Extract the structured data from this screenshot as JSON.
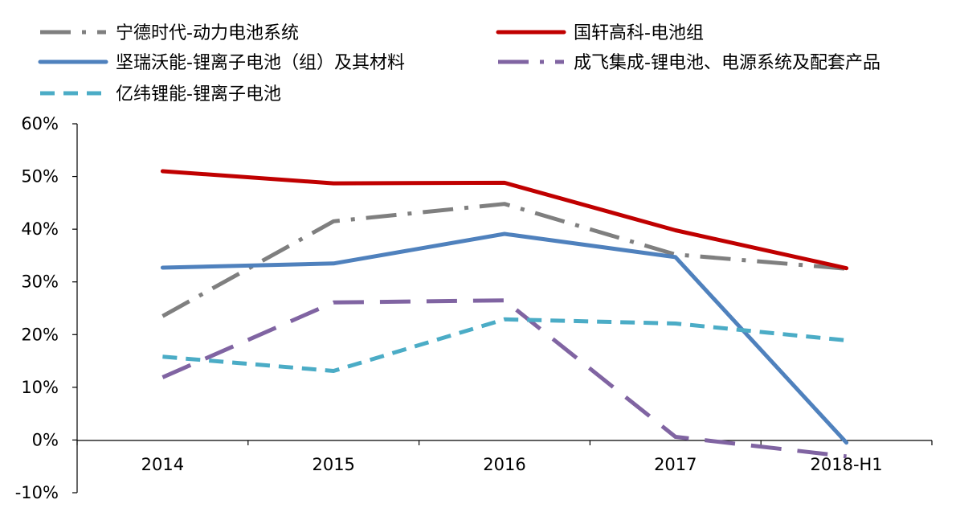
{
  "chart_data": {
    "type": "line",
    "categories": [
      "2014",
      "2015",
      "2016",
      "2017",
      "2018-H1"
    ],
    "y_ticks": [
      "60%",
      "50%",
      "40%",
      "30%",
      "20%",
      "10%",
      "0%",
      "-10%"
    ],
    "ylim": [
      -10,
      60
    ],
    "y_unit": "%",
    "legend_position": "top",
    "series": [
      {
        "name": "宁德时代-动力电池系统",
        "values": [
          23.5,
          41.5,
          44.8,
          35.2,
          32.5
        ],
        "color": "#7f7f7f",
        "style": "dashdot"
      },
      {
        "name": "国轩高科-电池组",
        "values": [
          51.0,
          48.7,
          48.8,
          39.8,
          32.6
        ],
        "color": "#c00000",
        "style": "solid"
      },
      {
        "name": "坚瑞沃能-锂离子电池（组）及其材料",
        "values": [
          32.7,
          33.5,
          39.1,
          34.7,
          -0.5
        ],
        "color": "#4f81bd",
        "style": "solid"
      },
      {
        "name": "成飞集成-锂电池、电源系统及配套产品",
        "values": [
          11.9,
          26.1,
          26.5,
          0.6,
          -3.1
        ],
        "color": "#8064a2",
        "style": "longdash"
      },
      {
        "name": "亿纬锂能-锂离子电池",
        "values": [
          15.8,
          13.1,
          22.9,
          22.1,
          18.9
        ],
        "color": "#4bacc6",
        "style": "dash"
      }
    ]
  }
}
